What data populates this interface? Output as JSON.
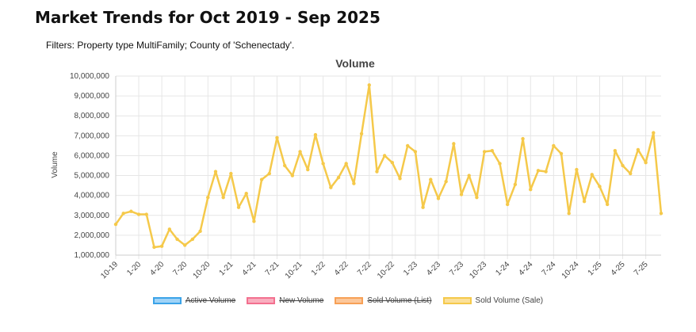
{
  "page": {
    "title": "Market Trends for Oct 2019 - Sep 2025",
    "filters": "Filters: Property type MultiFamily; County of 'Schenectady'."
  },
  "colors": {
    "line": "#f5c94a",
    "grid": "#e6e6e6"
  },
  "chart_data": {
    "type": "line",
    "title": "Volume",
    "xlabel": "",
    "ylabel": "Volume",
    "ylim": [
      1000000,
      10000000
    ],
    "yticks": [
      "1,000,000",
      "2,000,000",
      "3,000,000",
      "4,000,000",
      "5,000,000",
      "6,000,000",
      "7,000,000",
      "8,000,000",
      "9,000,000",
      "10,000,000"
    ],
    "xtick_labels": [
      "10-19",
      "1-20",
      "4-20",
      "7-20",
      "10-20",
      "1-21",
      "4-21",
      "7-21",
      "10-21",
      "1-22",
      "4-22",
      "7-22",
      "10-22",
      "1-23",
      "4-23",
      "7-23",
      "10-23",
      "1-24",
      "4-24",
      "7-24",
      "10-24",
      "1-25",
      "4-25",
      "7-25"
    ],
    "series": [
      {
        "name": "Sold Volume (Sale)",
        "color": "#f5c94a",
        "values": [
          2550000,
          3100000,
          3200000,
          3050000,
          3050000,
          1400000,
          1450000,
          2300000,
          1800000,
          1500000,
          1800000,
          2200000,
          3900000,
          5200000,
          3900000,
          5100000,
          3400000,
          4100000,
          2700000,
          4800000,
          5100000,
          6900000,
          5500000,
          5000000,
          6200000,
          5300000,
          7050000,
          5600000,
          4400000,
          4900000,
          5600000,
          4600000,
          7100000,
          9550000,
          5200000,
          6000000,
          5650000,
          4850000,
          6500000,
          6200000,
          3400000,
          4800000,
          3850000,
          4700000,
          6600000,
          4050000,
          5000000,
          3900000,
          6200000,
          6250000,
          5600000,
          3550000,
          4550000,
          6850000,
          4300000,
          5250000,
          5200000,
          6500000,
          6100000,
          3100000,
          5300000,
          3700000,
          5050000,
          4450000,
          3550000,
          6250000,
          5500000,
          5100000,
          6300000,
          5650000,
          7150000,
          3100000
        ]
      }
    ],
    "legend": [
      {
        "label": "Active Volume",
        "fill": "#9fd3f7",
        "stroke": "#3ba3e8",
        "hidden": true
      },
      {
        "label": "New Volume",
        "fill": "#f9aebf",
        "stroke": "#f3708f",
        "hidden": true
      },
      {
        "label": "Sold Volume (List)",
        "fill": "#fcc79a",
        "stroke": "#f7a056",
        "hidden": true
      },
      {
        "label": "Sold Volume (Sale)",
        "fill": "#fbe09a",
        "stroke": "#f5c94a",
        "hidden": false
      }
    ]
  }
}
